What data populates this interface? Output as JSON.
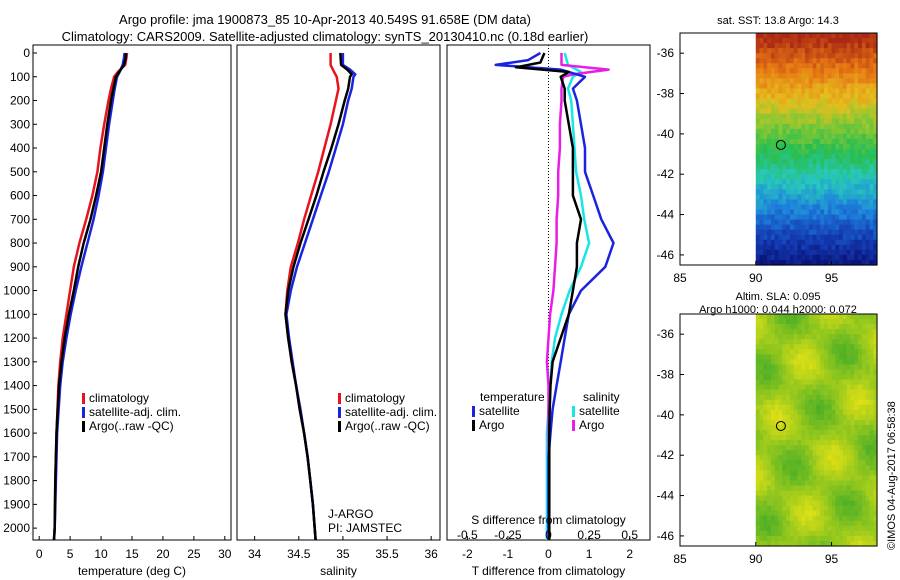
{
  "header": {
    "line1": "Argo profile: jma 1900873_85 10-Apr-2013 40.549S 91.658E (DM data)",
    "line2": "Climatology: CARS2009. Satellite-adjusted climatology: synTS_20130410.nc (0.18d earlier)"
  },
  "credit": "©IMOS 04-Aug-2017 06:58:38",
  "colors": {
    "climatology": "#e8141b",
    "satellite": "#1a23e0",
    "argo": "#000000",
    "satellite_salinity": "#18e6e6",
    "argo_salinity": "#e81de8"
  },
  "chart_data": [
    {
      "id": "temperature",
      "type": "line",
      "xlabel": "temperature (deg C)",
      "ylabel": "",
      "xlim": [
        -1,
        31
      ],
      "ylim": [
        0,
        2050
      ],
      "xticks": [
        0,
        5,
        10,
        15,
        20,
        25,
        30
      ],
      "yticks": [
        0,
        100,
        200,
        300,
        400,
        500,
        600,
        700,
        800,
        900,
        1000,
        1100,
        1200,
        1300,
        1400,
        1500,
        1600,
        1700,
        1800,
        1900,
        2000
      ],
      "legend": [
        "climatology",
        "satellite-adj. clim.",
        "Argo(..raw -QC)"
      ],
      "series": [
        {
          "name": "climatology",
          "color": "#e8141b",
          "depth": [
            0,
            20,
            50,
            80,
            100,
            150,
            200,
            300,
            400,
            500,
            600,
            700,
            800,
            900,
            1000,
            1100,
            1200,
            1300,
            1400,
            1600,
            1800,
            2000,
            2050
          ],
          "values": [
            14.2,
            14.1,
            13.9,
            12.7,
            12.1,
            11.6,
            11.2,
            10.5,
            9.9,
            9.4,
            8.6,
            7.6,
            6.5,
            5.6,
            5.0,
            4.4,
            3.8,
            3.4,
            3.1,
            2.8,
            2.6,
            2.5,
            2.4
          ]
        },
        {
          "name": "satellite-adj. clim.",
          "color": "#1a23e0",
          "depth": [
            0,
            20,
            50,
            80,
            100,
            150,
            200,
            300,
            400,
            500,
            600,
            700,
            800,
            900,
            1000,
            1100,
            1200,
            1300,
            1400,
            1600,
            1800,
            2000,
            2050
          ],
          "values": [
            13.8,
            13.7,
            13.5,
            13.0,
            12.6,
            12.2,
            11.9,
            11.3,
            10.8,
            10.3,
            9.6,
            8.8,
            7.8,
            6.8,
            5.9,
            5.1,
            4.4,
            3.8,
            3.4,
            2.9,
            2.7,
            2.5,
            2.4
          ]
        },
        {
          "name": "Argo(..raw -QC)",
          "color": "#000000",
          "depth": [
            0,
            20,
            50,
            80,
            100,
            150,
            200,
            300,
            400,
            500,
            600,
            700,
            800,
            900,
            1000,
            1100,
            1200,
            1300,
            1400,
            1600,
            1800,
            2000,
            2050
          ],
          "values": [
            14.0,
            14.0,
            13.7,
            12.9,
            12.4,
            12.0,
            11.6,
            11.0,
            10.5,
            10.0,
            9.2,
            8.3,
            7.2,
            6.3,
            5.6,
            4.8,
            4.1,
            3.6,
            3.2,
            2.8,
            2.6,
            2.5,
            2.4
          ]
        }
      ]
    },
    {
      "id": "salinity",
      "type": "line",
      "xlabel": "salinity",
      "ylabel": "",
      "xlim": [
        33.8,
        36.1
      ],
      "ylim": [
        0,
        2050
      ],
      "xticks": [
        34,
        34.5,
        35,
        35.5,
        36
      ],
      "legend": [
        "climatology",
        "satellite-adj. clim.",
        "Argo(..raw -QC)"
      ],
      "annotations": [
        "J-ARGO",
        "PI: JAMSTEC"
      ],
      "series": [
        {
          "name": "climatology",
          "color": "#e8141b",
          "depth": [
            0,
            50,
            80,
            100,
            150,
            200,
            300,
            400,
            500,
            600,
            700,
            800,
            900,
            1000,
            1100,
            1200,
            1300,
            1400,
            1500,
            1600,
            1700,
            1800,
            1900,
            2000,
            2050
          ],
          "values": [
            34.86,
            34.86,
            34.9,
            34.93,
            34.95,
            34.92,
            34.86,
            34.79,
            34.72,
            34.64,
            34.56,
            34.49,
            34.41,
            34.37,
            34.35,
            34.38,
            34.42,
            34.47,
            34.51,
            34.56,
            34.6,
            34.63,
            34.66,
            34.68,
            34.69
          ]
        },
        {
          "name": "satellite-adj. clim.",
          "color": "#1a23e0",
          "depth": [
            0,
            50,
            70,
            90,
            100,
            150,
            200,
            300,
            400,
            500,
            600,
            700,
            800,
            900,
            1000,
            1100,
            1200,
            1300,
            1400,
            1500,
            1600,
            1700,
            1800,
            1900,
            2000,
            2050
          ],
          "values": [
            35.0,
            35.0,
            35.08,
            35.14,
            35.12,
            35.1,
            35.06,
            35.0,
            34.92,
            34.84,
            34.75,
            34.66,
            34.57,
            34.48,
            34.41,
            34.36,
            34.39,
            34.43,
            34.47,
            34.52,
            34.56,
            34.6,
            34.63,
            34.66,
            34.68,
            34.69
          ]
        },
        {
          "name": "Argo(..raw -QC)",
          "color": "#000000",
          "depth": [
            0,
            50,
            70,
            90,
            100,
            150,
            200,
            300,
            400,
            500,
            600,
            700,
            800,
            900,
            1000,
            1100,
            1200,
            1300,
            1400,
            1500,
            1600,
            1700,
            1800,
            1900,
            2000,
            2050
          ],
          "values": [
            34.97,
            34.98,
            35.05,
            35.1,
            35.08,
            35.06,
            35.02,
            34.95,
            34.87,
            34.78,
            34.7,
            34.61,
            34.52,
            34.44,
            34.38,
            34.35,
            34.38,
            34.42,
            34.47,
            34.51,
            34.56,
            34.6,
            34.63,
            34.66,
            34.68,
            34.69
          ]
        }
      ]
    },
    {
      "id": "difference",
      "type": "line",
      "xlabel": "T difference from climatology",
      "top_axis_label": "S difference from climatology",
      "xlim": [
        -2.5,
        2.5
      ],
      "ylim": [
        0,
        2050
      ],
      "xticks": [
        -2,
        -1,
        0,
        1,
        2
      ],
      "top_ticks": [
        "-0.5",
        "-0.25",
        "0",
        "0.25",
        "0.5"
      ],
      "legend_headers": [
        "temperature",
        "salinity"
      ],
      "legend": [
        "satellite",
        "Argo",
        "satellite",
        "Argo"
      ],
      "series": [
        {
          "name": "temperature satellite",
          "color": "#1a23e0",
          "depth": [
            0,
            30,
            50,
            70,
            100,
            150,
            200,
            300,
            400,
            500,
            600,
            700,
            800,
            900,
            1000,
            1100,
            1200,
            1300,
            1400,
            1500,
            1600,
            1700,
            1800,
            2000,
            2050
          ],
          "values": [
            -0.2,
            -0.5,
            -1.3,
            0.3,
            0.9,
            0.6,
            0.7,
            0.8,
            0.9,
            0.9,
            1.1,
            1.3,
            1.6,
            1.4,
            0.8,
            0.5,
            0.4,
            0.3,
            0.2,
            0.1,
            0.05,
            0.0,
            0.0,
            0.0,
            0.0
          ]
        },
        {
          "name": "temperature Argo",
          "color": "#000000",
          "depth": [
            0,
            40,
            60,
            80,
            100,
            150,
            200,
            300,
            400,
            500,
            600,
            700,
            800,
            900,
            1000,
            1100,
            1200,
            1300,
            1400,
            1500,
            1600,
            1700,
            1800,
            2000,
            2050
          ],
          "values": [
            -0.1,
            -0.2,
            -0.8,
            0.5,
            0.3,
            0.4,
            0.4,
            0.5,
            0.6,
            0.6,
            0.6,
            0.8,
            0.7,
            0.7,
            0.6,
            0.5,
            0.3,
            0.1,
            0.05,
            0.03,
            0.02,
            0.02,
            0.02,
            0.02,
            0.02
          ]
        },
        {
          "name": "salinity satellite",
          "color": "#18e6e6",
          "depth": [
            0,
            50,
            80,
            100,
            150,
            200,
            300,
            400,
            500,
            600,
            700,
            800,
            900,
            1000,
            1100,
            1200,
            1300,
            1400,
            1500,
            1600,
            1800,
            2000,
            2050
          ],
          "values": [
            0.1,
            0.12,
            0.2,
            0.15,
            0.12,
            0.14,
            0.15,
            0.16,
            0.17,
            0.2,
            0.22,
            0.25,
            0.2,
            0.13,
            0.08,
            0.04,
            0.02,
            0.01,
            0.0,
            -0.01,
            -0.01,
            -0.01,
            -0.01
          ]
        },
        {
          "name": "salinity Argo",
          "color": "#e81de8",
          "depth": [
            0,
            50,
            70,
            90,
            100,
            150,
            200,
            300,
            400,
            500,
            600,
            700,
            800,
            900,
            1000,
            1100,
            1200,
            1300,
            1400,
            1500,
            1600,
            1800,
            2000,
            2050
          ],
          "values": [
            0.08,
            0.08,
            0.37,
            0.15,
            0.09,
            0.08,
            0.08,
            0.07,
            0.07,
            0.06,
            0.06,
            0.05,
            0.05,
            0.04,
            0.03,
            0.01,
            0.0,
            -0.01,
            0.0,
            0.0,
            0.0,
            0.0,
            0.0,
            0.0
          ]
        }
      ]
    },
    {
      "id": "sst_map",
      "type": "heatmap",
      "title": "sat. SST: 13.8 Argo: 14.3",
      "xlim": [
        85,
        98
      ],
      "ylim": [
        -46.5,
        -35
      ],
      "xticks": [
        85,
        90,
        95
      ],
      "yticks": [
        -36,
        -38,
        -40,
        -42,
        -44,
        -46
      ],
      "data_lon_start": 90,
      "marker": {
        "lon": 91.658,
        "lat": -40.549
      }
    },
    {
      "id": "sla_map",
      "type": "heatmap",
      "title": "Altim. SLA: 0.095",
      "subtitle": "Argo h1000: 0.044 h2000: 0.072",
      "xlim": [
        85,
        98
      ],
      "ylim": [
        -46.5,
        -35
      ],
      "xticks": [
        85,
        90,
        95
      ],
      "yticks": [
        -36,
        -38,
        -40,
        -42,
        -44,
        -46
      ],
      "data_lon_start": 90,
      "marker": {
        "lon": 91.658,
        "lat": -40.549
      }
    }
  ]
}
